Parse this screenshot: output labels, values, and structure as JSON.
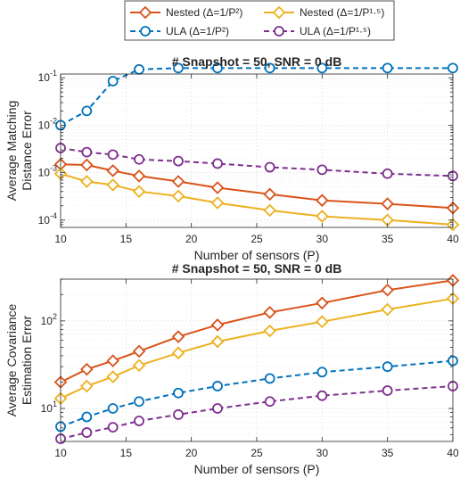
{
  "colors": {
    "nested2": "#D95319",
    "nested15": "#EDB120",
    "ula2": "#0072BD",
    "ula15": "#7E2F8E",
    "grid": "#e6e6e6",
    "axis": "#262626"
  },
  "legend": {
    "items": [
      {
        "key": "nested2",
        "label": "Nested (Δ=1/P²)",
        "marker": "diamond",
        "dash": false
      },
      {
        "key": "nested15",
        "label": "Nested (Δ=1/P¹·⁵)",
        "marker": "diamond",
        "dash": false
      },
      {
        "key": "ula2",
        "label": "ULA (Δ=1/P²)",
        "marker": "circle",
        "dash": true
      },
      {
        "key": "ula15",
        "label": "ULA (Δ=1/P¹·⁵)",
        "marker": "circle",
        "dash": true
      }
    ]
  },
  "chart_data": [
    {
      "type": "line",
      "title": "# Snapshot = 50, SNR = 0 dB",
      "xlabel": "Number of sensors (P)",
      "ylabel": [
        "Average Matching",
        "Distance Error"
      ],
      "yscale": "log",
      "xlim": [
        10,
        40
      ],
      "ylim": [
        7e-05,
        0.12
      ],
      "xticks": [
        10,
        15,
        20,
        25,
        30,
        35,
        40
      ],
      "yticks": [
        {
          "value": 0.0001,
          "base": "10",
          "exp": "-4"
        },
        {
          "value": 0.001,
          "base": "10",
          "exp": "-3"
        },
        {
          "value": 0.01,
          "base": "10",
          "exp": "-2"
        },
        {
          "value": 0.1,
          "base": "10",
          "exp": "-1"
        }
      ],
      "grid": true,
      "x": [
        10,
        12,
        14,
        16,
        19,
        22,
        26,
        30,
        35,
        40
      ],
      "series": [
        {
          "key": "nested2",
          "values": [
            0.0015,
            0.00145,
            0.0011,
            0.00085,
            0.00065,
            0.00048,
            0.00035,
            0.00026,
            0.00022,
            0.00018
          ]
        },
        {
          "key": "nested15",
          "values": [
            0.00095,
            0.00065,
            0.00055,
            0.0004,
            0.00032,
            0.00023,
            0.00016,
            0.00012,
            0.0001,
            8e-05
          ]
        },
        {
          "key": "ula2",
          "values": [
            0.01,
            0.02,
            0.085,
            0.15,
            0.16,
            0.16,
            0.16,
            0.16,
            0.16,
            0.16
          ]
        },
        {
          "key": "ula15",
          "values": [
            0.0033,
            0.0027,
            0.0024,
            0.0019,
            0.00175,
            0.00155,
            0.0013,
            0.00115,
            0.00095,
            0.00085
          ]
        }
      ]
    },
    {
      "type": "line",
      "title": "# Snapshot = 50, SNR = 0 dB",
      "xlabel": "Number of sensors (P)",
      "ylabel": [
        "Average Covariance",
        "Estimation Error"
      ],
      "yscale": "log",
      "xlim": [
        10,
        40
      ],
      "ylim": [
        4.2,
        300
      ],
      "xticks": [
        10,
        15,
        20,
        25,
        30,
        35,
        40
      ],
      "yticks": [
        {
          "value": 10,
          "base": "10",
          "exp": "1"
        },
        {
          "value": 100,
          "base": "10",
          "exp": "2"
        }
      ],
      "grid": true,
      "x": [
        10,
        12,
        14,
        16,
        19,
        22,
        26,
        30,
        35,
        40
      ],
      "series": [
        {
          "key": "nested2",
          "values": [
            20,
            28,
            35,
            45,
            66,
            90,
            125,
            160,
            225,
            290
          ]
        },
        {
          "key": "nested15",
          "values": [
            13,
            18,
            23,
            31,
            43,
            58,
            77,
            98,
            135,
            180
          ]
        },
        {
          "key": "ula2",
          "values": [
            6.2,
            8,
            10,
            12,
            15,
            18,
            22,
            26,
            30,
            35
          ]
        },
        {
          "key": "ula15",
          "values": [
            4.5,
            5.3,
            6.1,
            7.2,
            8.5,
            10,
            12,
            14,
            16,
            18
          ]
        }
      ]
    }
  ]
}
